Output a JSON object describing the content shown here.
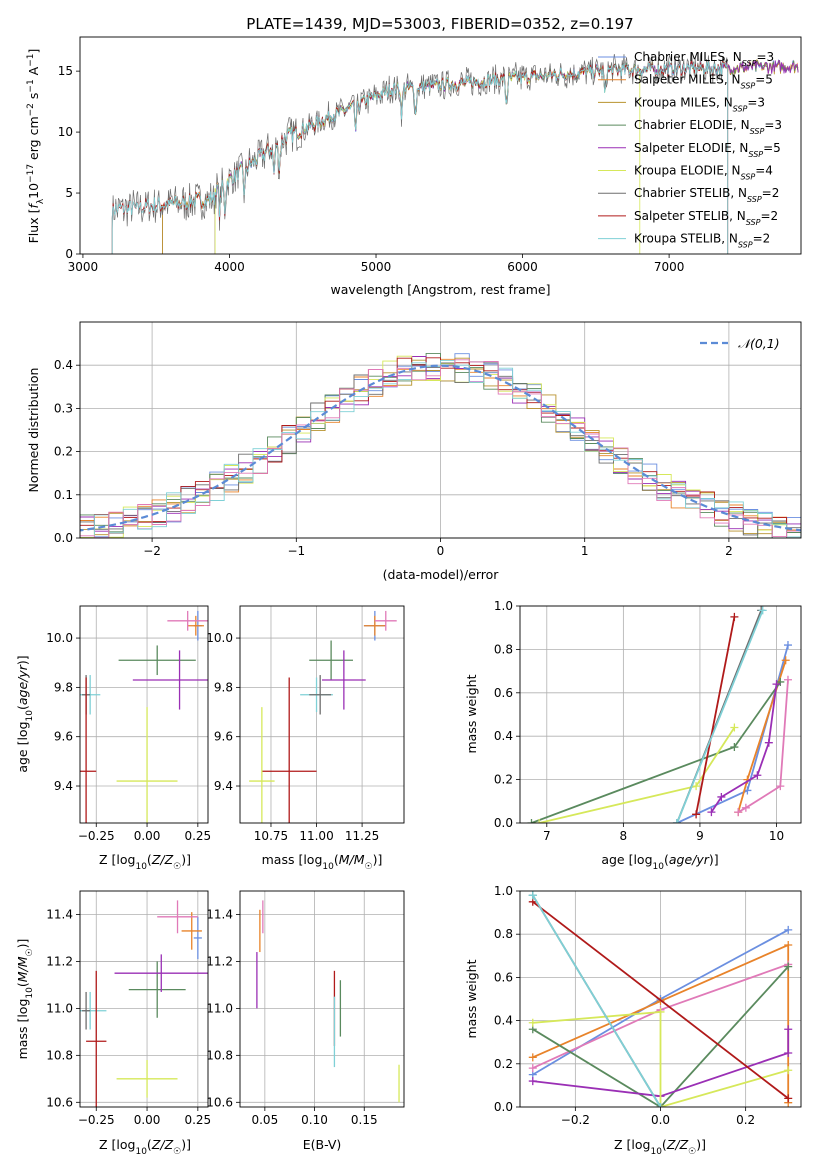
{
  "colors": {
    "Chabrier MILES": "#6b8fe0",
    "Salpeter MILES": "#e8832a",
    "Kroupa MILES": "#b8922e",
    "Chabrier ELODIE": "#5a8a5e",
    "Salpeter ELODIE": "#9a2fb5",
    "Kroupa ELODIE": "#d6e85a",
    "Chabrier STELIB": "#6e6e6e",
    "Salpeter STELIB": "#b01a1a",
    "Kroupa STELIB": "#7fd0d6",
    "pink": "#e07ab8",
    "gauss": "#5b8bd6",
    "grid": "#b0b0b0"
  },
  "chart_data": [
    {
      "type": "line",
      "title": "PLATE=1439, MJD=53003, FIBERID=0352, z=0.197",
      "xlabel": "wavelength [Angstrom, rest frame]",
      "ylabel": "Flux [f_λ 10^-17 erg cm^-2 s^-1 A^-1]",
      "xlim": [
        2980,
        7900
      ],
      "ylim": [
        0,
        17.8
      ],
      "xticks": [
        3000,
        4000,
        5000,
        6000,
        7000
      ],
      "yticks": [
        0,
        5,
        10,
        15
      ],
      "grid": false,
      "legend_position": "right",
      "legend": [
        {
          "name": "Chabrier MILES",
          "nssp": 3
        },
        {
          "name": "Salpeter MILES",
          "nssp": 5
        },
        {
          "name": "Kroupa MILES",
          "nssp": 3
        },
        {
          "name": "Chabrier ELODIE",
          "nssp": 3
        },
        {
          "name": "Salpeter ELODIE",
          "nssp": 5
        },
        {
          "name": "Kroupa ELODIE",
          "nssp": 4
        },
        {
          "name": "Chabrier STELIB",
          "nssp": 2
        },
        {
          "name": "Salpeter STELIB",
          "nssp": 2
        },
        {
          "name": "Kroupa STELIB",
          "nssp": 2
        }
      ],
      "spectrum_start": {
        "Chabrier MILES": 3540,
        "Salpeter MILES": 3540,
        "Kroupa MILES": 3540,
        "Chabrier ELODIE": 3900,
        "Salpeter ELODIE": 3900,
        "Kroupa ELODIE": 3900,
        "Chabrier STELIB": 3200,
        "Salpeter STELIB": 3200,
        "Kroupa STELIB": 3200
      },
      "spectrum_end": {
        "Kroupa ELODIE": 6800,
        "Salpeter STELIB": 7400,
        "Chabrier STELIB": 7400,
        "Kroupa STELIB": 7400
      }
    },
    {
      "type": "line",
      "xlabel": "(data-model)/error",
      "ylabel": "Normed distribution",
      "xlim": [
        -2.5,
        2.5
      ],
      "ylim": [
        0,
        0.5
      ],
      "xticks": [
        -2,
        -1,
        0,
        1,
        2
      ],
      "yticks": [
        0.0,
        0.1,
        0.2,
        0.3,
        0.4
      ],
      "grid": true,
      "legend_position": "top-right",
      "legend": [
        "N(0,1)"
      ],
      "histograms": "step histograms of residuals, one per fitted model, following N(0,1)"
    },
    {
      "type": "scatter",
      "xlabel": "Z [log10(Z/Z☉)]",
      "ylabel": "age [log10(age/yr)]",
      "xlim": [
        -0.33,
        0.3
      ],
      "ylim": [
        9.25,
        10.13
      ],
      "xticks": [
        -0.25,
        0.0,
        0.25
      ],
      "yticks": [
        9.4,
        9.6,
        9.8,
        10.0
      ],
      "grid": true,
      "points": [
        {
          "series": "Chabrier MILES",
          "x": 0.25,
          "y": 10.05,
          "xerr": 0.02,
          "yerr": 0.06
        },
        {
          "series": "Salpeter MILES",
          "x": 0.24,
          "y": 10.05,
          "xerr": 0.04,
          "yerr": 0.04
        },
        {
          "series": "pink",
          "x": 0.2,
          "y": 10.07,
          "xerr": 0.1,
          "yerr": 0.04
        },
        {
          "series": "Chabrier ELODIE",
          "x": 0.05,
          "y": 9.91,
          "xerr": 0.19,
          "yerr": 0.06
        },
        {
          "series": "Salpeter ELODIE",
          "x": 0.16,
          "y": 9.83,
          "xerr": 0.23,
          "yerr": 0.12
        },
        {
          "series": "Kroupa STELIB",
          "x": -0.28,
          "y": 9.77,
          "xerr": 0.05,
          "yerr": 0.08
        },
        {
          "series": "Chabrier STELIB",
          "x": -0.3,
          "y": 9.77,
          "xerr": 0.02,
          "yerr": 0.08
        },
        {
          "series": "Salpeter STELIB",
          "x": -0.3,
          "y": 9.46,
          "xerr": 0.05,
          "yerr": 0.38
        },
        {
          "series": "Kroupa ELODIE",
          "x": 0.0,
          "y": 9.42,
          "xerr": 0.15,
          "yerr": 0.3
        }
      ]
    },
    {
      "type": "scatter",
      "xlabel": "mass [log10(M/M☉)]",
      "ylabel": "",
      "xlim": [
        10.58,
        11.48
      ],
      "ylim": [
        9.25,
        10.13
      ],
      "xticks": [
        10.75,
        11.0,
        11.25
      ],
      "tick_labels": [
        "10.75",
        "11.00",
        "11.25"
      ],
      "yticks": [
        9.4,
        9.6,
        9.8,
        10.0
      ],
      "grid": true,
      "points": [
        {
          "series": "Chabrier MILES",
          "x": 11.32,
          "y": 10.05,
          "xerr": 0.06,
          "yerr": 0.06
        },
        {
          "series": "Salpeter MILES",
          "x": 11.32,
          "y": 10.05,
          "xerr": 0.06,
          "yerr": 0.04
        },
        {
          "series": "pink",
          "x": 11.38,
          "y": 10.07,
          "xerr": 0.06,
          "yerr": 0.04
        },
        {
          "series": "Chabrier ELODIE",
          "x": 11.08,
          "y": 9.91,
          "xerr": 0.12,
          "yerr": 0.08
        },
        {
          "series": "Salpeter ELODIE",
          "x": 11.15,
          "y": 9.83,
          "xerr": 0.12,
          "yerr": 0.12
        },
        {
          "series": "Kroupa STELIB",
          "x": 11.0,
          "y": 9.77,
          "xerr": 0.09,
          "yerr": 0.07
        },
        {
          "series": "Chabrier STELIB",
          "x": 11.02,
          "y": 9.77,
          "xerr": 0.06,
          "yerr": 0.08
        },
        {
          "series": "Salpeter STELIB",
          "x": 10.85,
          "y": 9.46,
          "xerr": 0.15,
          "yerr": 0.38
        },
        {
          "series": "Kroupa ELODIE",
          "x": 10.7,
          "y": 9.42,
          "xerr": 0.07,
          "yerr": 0.3
        }
      ]
    },
    {
      "type": "line",
      "xlabel": "age [log10(age/yr)]",
      "ylabel": "mass weight",
      "xlim": [
        6.65,
        10.32
      ],
      "ylim": [
        0,
        1.0
      ],
      "xticks": [
        7,
        8,
        9,
        10
      ],
      "yticks": [
        0.0,
        0.2,
        0.4,
        0.6,
        0.8,
        1.0
      ],
      "grid": true,
      "series": [
        {
          "name": "Chabrier MILES",
          "points": [
            [
              8.7,
              0.0
            ],
            [
              9.62,
              0.15
            ],
            [
              10.15,
              0.82
            ]
          ]
        },
        {
          "name": "Salpeter MILES",
          "points": [
            [
              9.5,
              0.05
            ],
            [
              9.62,
              0.2
            ],
            [
              10.12,
              0.75
            ]
          ]
        },
        {
          "name": "pink",
          "points": [
            [
              9.5,
              0.05
            ],
            [
              9.6,
              0.07
            ],
            [
              10.05,
              0.17
            ],
            [
              10.15,
              0.66
            ]
          ]
        },
        {
          "name": "Chabrier ELODIE",
          "points": [
            [
              6.8,
              0.0
            ],
            [
              9.45,
              0.35
            ],
            [
              10.05,
              0.65
            ]
          ]
        },
        {
          "name": "Salpeter ELODIE",
          "points": [
            [
              9.15,
              0.05
            ],
            [
              9.28,
              0.12
            ],
            [
              9.75,
              0.22
            ],
            [
              9.9,
              0.37
            ],
            [
              10.0,
              0.64
            ]
          ]
        },
        {
          "name": "Kroupa ELODIE",
          "points": [
            [
              6.9,
              0.0
            ],
            [
              8.95,
              0.17
            ],
            [
              9.45,
              0.44
            ]
          ]
        },
        {
          "name": "Chabrier STELIB",
          "points": [
            [
              8.7,
              0.0
            ],
            [
              9.8,
              0.98
            ]
          ]
        },
        {
          "name": "Salpeter STELIB",
          "points": [
            [
              8.95,
              0.04
            ],
            [
              9.45,
              0.95
            ]
          ]
        },
        {
          "name": "Kroupa STELIB",
          "points": [
            [
              8.7,
              0.0
            ],
            [
              9.82,
              0.98
            ]
          ]
        }
      ]
    },
    {
      "type": "scatter",
      "xlabel": "Z [log10(Z/Z☉)]",
      "ylabel": "mass [log10(M/M☉)]",
      "xlim": [
        -0.33,
        0.3
      ],
      "ylim": [
        10.58,
        11.5
      ],
      "xticks": [
        -0.25,
        0.0,
        0.25
      ],
      "yticks": [
        10.6,
        10.8,
        11.0,
        11.2,
        11.4
      ],
      "grid": true,
      "points": [
        {
          "series": "Chabrier MILES",
          "x": 0.25,
          "y": 11.3,
          "xerr": 0.02,
          "yerr": 0.09
        },
        {
          "series": "Salpeter MILES",
          "x": 0.22,
          "y": 11.33,
          "xerr": 0.05,
          "yerr": 0.08
        },
        {
          "series": "pink",
          "x": 0.15,
          "y": 11.39,
          "xerr": 0.1,
          "yerr": 0.07
        },
        {
          "series": "Chabrier ELODIE",
          "x": 0.05,
          "y": 11.08,
          "xerr": 0.14,
          "yerr": 0.12
        },
        {
          "series": "Salpeter ELODIE",
          "x": 0.07,
          "y": 11.15,
          "xerr": 0.23,
          "yerr": 0.08
        },
        {
          "series": "Kroupa STELIB",
          "x": -0.28,
          "y": 10.99,
          "xerr": 0.08,
          "yerr": 0.08
        },
        {
          "series": "Chabrier STELIB",
          "x": -0.3,
          "y": 10.99,
          "xerr": 0.02,
          "yerr": 0.08
        },
        {
          "series": "Salpeter STELIB",
          "x": -0.25,
          "y": 10.86,
          "xerr": 0.05,
          "yerr": 0.3
        },
        {
          "series": "Kroupa ELODIE",
          "x": 0.0,
          "y": 10.7,
          "xerr": 0.15,
          "yerr": 0.08
        }
      ]
    },
    {
      "type": "scatter",
      "xlabel": "E(B-V)",
      "ylabel": "",
      "xlim": [
        0.025,
        0.19
      ],
      "ylim": [
        10.58,
        11.5
      ],
      "xticks": [
        0.05,
        0.1,
        0.15
      ],
      "yticks": [
        10.6,
        10.8,
        11.0,
        11.2,
        11.4
      ],
      "grid": true,
      "points": [
        {
          "series": "Salpeter MILES",
          "x": 0.045,
          "y": 11.33,
          "xerr": 0.0,
          "yerr": 0.09
        },
        {
          "series": "pink",
          "x": 0.048,
          "y": 11.39,
          "xerr": 0.0,
          "yerr": 0.07
        },
        {
          "series": "Salpeter ELODIE",
          "x": 0.042,
          "y": 11.12,
          "xerr": 0.0,
          "yerr": 0.12
        },
        {
          "series": "Chabrier ELODIE",
          "x": 0.126,
          "y": 11.0,
          "xerr": 0.0,
          "yerr": 0.12
        },
        {
          "series": "Salpeter STELIB",
          "x": 0.12,
          "y": 11.0,
          "xerr": 0.0,
          "yerr": 0.16
        },
        {
          "series": "Kroupa STELIB",
          "x": 0.12,
          "y": 10.9,
          "xerr": 0.0,
          "yerr": 0.15
        },
        {
          "series": "Kroupa ELODIE",
          "x": 0.185,
          "y": 10.68,
          "xerr": 0.0,
          "yerr": 0.08
        }
      ]
    },
    {
      "type": "line",
      "xlabel": "Z [log10(Z/Z☉)]",
      "ylabel": "mass weight",
      "xlim": [
        -0.33,
        0.33
      ],
      "ylim": [
        0,
        1.0
      ],
      "xticks": [
        -0.2,
        0.0,
        0.2
      ],
      "yticks": [
        0.0,
        0.2,
        0.4,
        0.6,
        0.8,
        1.0
      ],
      "grid": true,
      "series": [
        {
          "name": "Chabrier MILES",
          "points": [
            [
              -0.3,
              0.15
            ],
            [
              0.0,
              0.5
            ],
            [
              0.3,
              0.82
            ]
          ]
        },
        {
          "name": "Salpeter MILES",
          "points": [
            [
              -0.3,
              0.23
            ],
            [
              0.0,
              0.49
            ],
            [
              0.3,
              0.75
            ],
            [
              0.3,
              0.02
            ]
          ]
        },
        {
          "name": "pink",
          "points": [
            [
              -0.3,
              0.18
            ],
            [
              0.0,
              0.45
            ],
            [
              0.3,
              0.66
            ]
          ]
        },
        {
          "name": "Chabrier ELODIE",
          "points": [
            [
              -0.3,
              0.36
            ],
            [
              0.0,
              0.0
            ],
            [
              0.3,
              0.65
            ]
          ]
        },
        {
          "name": "Salpeter ELODIE",
          "points": [
            [
              -0.3,
              0.12
            ],
            [
              0.0,
              0.05
            ],
            [
              0.3,
              0.25
            ],
            [
              0.3,
              0.36
            ]
          ]
        },
        {
          "name": "Kroupa ELODIE",
          "points": [
            [
              -0.3,
              0.39
            ],
            [
              0.0,
              0.44
            ],
            [
              0.0,
              0.0
            ],
            [
              0.3,
              0.17
            ]
          ]
        },
        {
          "name": "Chabrier STELIB",
          "points": [
            [
              -0.3,
              0.98
            ],
            [
              0.0,
              0.0
            ]
          ]
        },
        {
          "name": "Salpeter STELIB",
          "points": [
            [
              -0.3,
              0.95
            ],
            [
              0.3,
              0.04
            ]
          ]
        },
        {
          "name": "Kroupa STELIB",
          "points": [
            [
              -0.3,
              0.98
            ],
            [
              0.0,
              0.0
            ]
          ]
        }
      ]
    }
  ],
  "labels": {
    "title": "PLATE=1439, MJD=53003, FIBERID=0352, z=0.197",
    "gauss_legend": "𝒩(0,1)",
    "legend_nssp": "N"
  }
}
